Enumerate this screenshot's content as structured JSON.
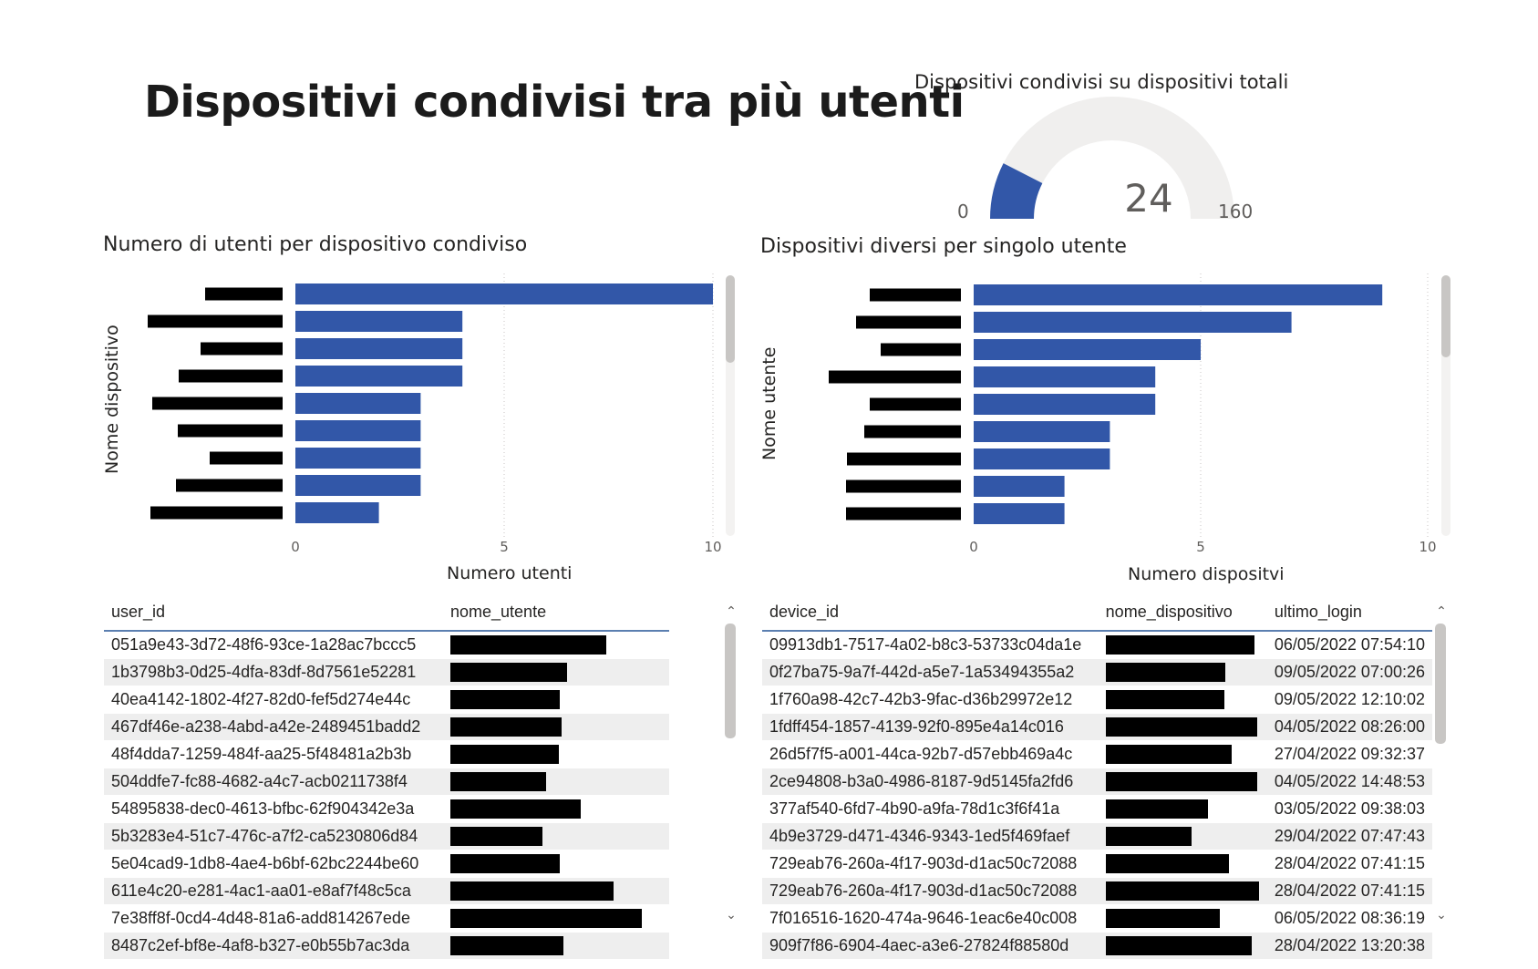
{
  "page": {
    "title": "Dispositivi condivisi tra più utenti"
  },
  "gauge": {
    "title": "Dispositivi condivisi su dispositivi totali",
    "value": 24,
    "min": 0,
    "max": 160,
    "value_label": "24",
    "min_label": "0",
    "max_label": "160",
    "fill_color": "#3257a8",
    "track_color": "#f0efee"
  },
  "chart_left": {
    "title": "Numero di utenti per dispositivo condiviso",
    "chart_data": {
      "type": "bar",
      "orientation": "horizontal",
      "title": "Numero di utenti per dispositivo condiviso",
      "xlabel": "Numero utenti",
      "ylabel": "Nome dispositivo",
      "categories": [
        "[redacted]",
        "[redacted]",
        "[redacted]",
        "[redacted]",
        "[redacted]",
        "[redacted]",
        "[redacted]",
        "[redacted]",
        "[redacted]"
      ],
      "values": [
        10,
        4,
        4,
        4,
        3,
        3,
        3,
        3,
        2
      ],
      "xlim": [
        0,
        10
      ],
      "xticks": [
        "0",
        "5",
        "10"
      ],
      "grid": true,
      "color": "#3257a8"
    }
  },
  "chart_right": {
    "title": "Dispositivi diversi per singolo utente",
    "chart_data": {
      "type": "bar",
      "orientation": "horizontal",
      "title": "Dispositivi diversi per singolo utente",
      "xlabel": "Numero dispositvi",
      "ylabel": "Nome utente",
      "categories": [
        "[redacted]",
        "[redacted]",
        "[redacted]",
        "[redacted]",
        "[redacted]",
        "[redacted]",
        "[redacted]",
        "[redacted]",
        "[redacted]"
      ],
      "values": [
        9,
        7,
        5,
        4,
        4,
        3,
        3,
        2,
        2
      ],
      "xlim": [
        0,
        10
      ],
      "xticks": [
        "0",
        "5",
        "10"
      ],
      "grid": true,
      "color": "#3257a8"
    }
  },
  "table_left": {
    "columns": [
      "user_id",
      "nome_utente"
    ],
    "rows": [
      {
        "user_id": "051a9e43-3d72-48f6-93ce-1a28ac7bccc5",
        "nome_utente": "[redacted]"
      },
      {
        "user_id": "1b3798b3-0d25-4dfa-83df-8d7561e52281",
        "nome_utente": "[redacted]"
      },
      {
        "user_id": "40ea4142-1802-4f27-82d0-fef5d274e44c",
        "nome_utente": "[redacted]"
      },
      {
        "user_id": "467df46e-a238-4abd-a42e-2489451badd2",
        "nome_utente": "[redacted]"
      },
      {
        "user_id": "48f4dda7-1259-484f-aa25-5f48481a2b3b",
        "nome_utente": "[redacted]"
      },
      {
        "user_id": "504ddfe7-fc88-4682-a4c7-acb0211738f4",
        "nome_utente": "[redacted]"
      },
      {
        "user_id": "54895838-dec0-4613-bfbc-62f904342e3a",
        "nome_utente": "[redacted]"
      },
      {
        "user_id": "5b3283e4-51c7-476c-a7f2-ca5230806d84",
        "nome_utente": "[redacted]"
      },
      {
        "user_id": "5e04cad9-1db8-4ae4-b6bf-62bc2244be60",
        "nome_utente": "[redacted]"
      },
      {
        "user_id": "611e4c20-e281-4ac1-aa01-e8af7f48c5ca",
        "nome_utente": "[redacted]"
      },
      {
        "user_id": "7e38ff8f-0cd4-4d48-81a6-add814267ede",
        "nome_utente": "[redacted]"
      },
      {
        "user_id": "8487c2ef-bf8e-4af8-b327-e0b55b7ac3da",
        "nome_utente": "[redacted]"
      }
    ]
  },
  "table_right": {
    "columns": [
      "device_id",
      "nome_dispositivo",
      "ultimo_login"
    ],
    "rows": [
      {
        "device_id": "09913db1-7517-4a02-b8c3-53733c04da1e",
        "nome_dispositivo": "[redacted]",
        "ultimo_login": "06/05/2022 07:54:10"
      },
      {
        "device_id": "0f27ba75-9a7f-442d-a5e7-1a53494355a2",
        "nome_dispositivo": "[redacted]",
        "ultimo_login": "09/05/2022 07:00:26"
      },
      {
        "device_id": "1f760a98-42c7-42b3-9fac-d36b29972e12",
        "nome_dispositivo": "[redacted]",
        "ultimo_login": "09/05/2022 12:10:02"
      },
      {
        "device_id": "1fdff454-1857-4139-92f0-895e4a14c016",
        "nome_dispositivo": "[redacted]",
        "ultimo_login": "04/05/2022 08:26:00"
      },
      {
        "device_id": "26d5f7f5-a001-44ca-92b7-d57ebb469a4c",
        "nome_dispositivo": "[redacted]",
        "ultimo_login": "27/04/2022 09:32:37"
      },
      {
        "device_id": "2ce94808-b3a0-4986-8187-9d5145fa2fd6",
        "nome_dispositivo": "[redacted]",
        "ultimo_login": "04/05/2022 14:48:53"
      },
      {
        "device_id": "377af540-6fd7-4b90-a9fa-78d1c3f6f41a",
        "nome_dispositivo": "[redacted]",
        "ultimo_login": "03/05/2022 09:38:03"
      },
      {
        "device_id": "4b9e3729-d471-4346-9343-1ed5f469faef",
        "nome_dispositivo": "[redacted]",
        "ultimo_login": "29/04/2022 07:47:43"
      },
      {
        "device_id": "729eab76-260a-4f17-903d-d1ac50c72088",
        "nome_dispositivo": "[redacted]",
        "ultimo_login": "28/04/2022 07:41:15"
      },
      {
        "device_id": "729eab76-260a-4f17-903d-d1ac50c72088",
        "nome_dispositivo": "[redacted]",
        "ultimo_login": "28/04/2022 07:41:15"
      },
      {
        "device_id": "7f016516-1620-474a-9646-1eac6e40c008",
        "nome_dispositivo": "[redacted]",
        "ultimo_login": "06/05/2022 08:36:19"
      },
      {
        "device_id": "909f7f86-6904-4aec-a3e6-27824f88580d",
        "nome_dispositivo": "[redacted]",
        "ultimo_login": "28/04/2022 13:20:38"
      }
    ]
  },
  "scroll": {
    "up_icon": "chevron-up-icon",
    "down_icon": "chevron-down-icon"
  }
}
